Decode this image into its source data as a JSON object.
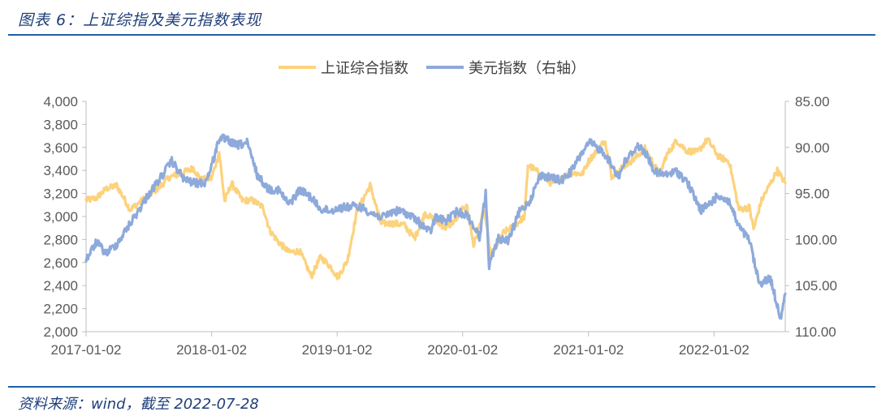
{
  "header": {
    "title": "图表 6：上证综指及美元指数表现"
  },
  "footer": {
    "source": "资料来源：wind，截至 2022-07-28"
  },
  "chart_data": {
    "type": "line",
    "title": "",
    "legend": {
      "placement": "top-center",
      "entries": [
        "上证综合指数",
        "美元指数（右轴）"
      ]
    },
    "x_axis": {
      "ticks": [
        "2017-01-02",
        "2018-01-02",
        "2019-01-02",
        "2020-01-02",
        "2021-01-02",
        "2022-01-02"
      ],
      "range": [
        "2017-01-02",
        "2022-07-28"
      ]
    },
    "y_left": {
      "min": 2000,
      "max": 4000,
      "step": 200,
      "ticks": [
        "2,000",
        "2,200",
        "2,400",
        "2,600",
        "2,800",
        "3,000",
        "3,200",
        "3,400",
        "3,600",
        "3,800",
        "4,000"
      ]
    },
    "y_right": {
      "min": 85,
      "max": 110,
      "step": 5,
      "reversed": true,
      "ticks": [
        "85.00",
        "90.00",
        "95.00",
        "100.00",
        "105.00",
        "110.00"
      ]
    },
    "grid": false,
    "series": [
      {
        "name": "上证综合指数",
        "axis": "left",
        "color": "#FCD27D",
        "points": [
          [
            "2017-01-02",
            3140
          ],
          [
            "2017-02-01",
            3160
          ],
          [
            "2017-03-01",
            3240
          ],
          [
            "2017-04-01",
            3270
          ],
          [
            "2017-04-20",
            3170
          ],
          [
            "2017-05-10",
            3060
          ],
          [
            "2017-06-01",
            3110
          ],
          [
            "2017-07-01",
            3180
          ],
          [
            "2017-08-01",
            3250
          ],
          [
            "2017-09-01",
            3340
          ],
          [
            "2017-10-01",
            3370
          ],
          [
            "2017-11-10",
            3420
          ],
          [
            "2017-12-01",
            3320
          ],
          [
            "2018-01-02",
            3330
          ],
          [
            "2018-01-24",
            3560
          ],
          [
            "2018-02-09",
            3130
          ],
          [
            "2018-03-01",
            3290
          ],
          [
            "2018-04-01",
            3140
          ],
          [
            "2018-05-01",
            3140
          ],
          [
            "2018-06-01",
            3080
          ],
          [
            "2018-06-20",
            2880
          ],
          [
            "2018-07-15",
            2780
          ],
          [
            "2018-08-15",
            2690
          ],
          [
            "2018-09-15",
            2700
          ],
          [
            "2018-10-19",
            2480
          ],
          [
            "2018-11-15",
            2650
          ],
          [
            "2018-12-15",
            2560
          ],
          [
            "2019-01-04",
            2470
          ],
          [
            "2019-02-01",
            2620
          ],
          [
            "2019-03-01",
            3050
          ],
          [
            "2019-04-08",
            3270
          ],
          [
            "2019-05-10",
            2940
          ],
          [
            "2019-06-15",
            2940
          ],
          [
            "2019-07-15",
            2930
          ],
          [
            "2019-08-15",
            2810
          ],
          [
            "2019-09-15",
            3030
          ],
          [
            "2019-10-15",
            2960
          ],
          [
            "2019-11-15",
            2900
          ],
          [
            "2019-12-15",
            2980
          ],
          [
            "2020-01-13",
            3110
          ],
          [
            "2020-02-03",
            2750
          ],
          [
            "2020-03-05",
            3060
          ],
          [
            "2020-03-23",
            2660
          ],
          [
            "2020-04-30",
            2860
          ],
          [
            "2020-06-01",
            2920
          ],
          [
            "2020-06-30",
            3000
          ],
          [
            "2020-07-10",
            3450
          ],
          [
            "2020-08-15",
            3370
          ],
          [
            "2020-09-15",
            3290
          ],
          [
            "2020-10-15",
            3330
          ],
          [
            "2020-11-15",
            3380
          ],
          [
            "2020-12-15",
            3370
          ],
          [
            "2021-01-02",
            3480
          ],
          [
            "2021-02-18",
            3660
          ],
          [
            "2021-03-10",
            3350
          ],
          [
            "2021-04-15",
            3440
          ],
          [
            "2021-05-15",
            3500
          ],
          [
            "2021-06-15",
            3590
          ],
          [
            "2021-07-28",
            3360
          ],
          [
            "2021-08-15",
            3520
          ],
          [
            "2021-09-15",
            3660
          ],
          [
            "2021-10-15",
            3570
          ],
          [
            "2021-11-15",
            3560
          ],
          [
            "2021-12-14",
            3670
          ],
          [
            "2022-01-15",
            3520
          ],
          [
            "2022-02-15",
            3480
          ],
          [
            "2022-03-15",
            3060
          ],
          [
            "2022-04-15",
            3080
          ],
          [
            "2022-04-27",
            2890
          ],
          [
            "2022-05-20",
            3140
          ],
          [
            "2022-07-05",
            3400
          ],
          [
            "2022-07-28",
            3290
          ]
        ]
      },
      {
        "name": "美元指数（右轴）",
        "axis": "right",
        "color": "#8EAADB",
        "points": [
          [
            "2017-01-02",
            102.2
          ],
          [
            "2017-02-01",
            100.3
          ],
          [
            "2017-03-01",
            101.5
          ],
          [
            "2017-04-01",
            100.5
          ],
          [
            "2017-05-01",
            98.8
          ],
          [
            "2017-06-01",
            97.0
          ],
          [
            "2017-07-01",
            95.2
          ],
          [
            "2017-08-01",
            93.6
          ],
          [
            "2017-09-08",
            91.5
          ],
          [
            "2017-10-15",
            93.5
          ],
          [
            "2017-11-15",
            93.9
          ],
          [
            "2017-12-15",
            93.8
          ],
          [
            "2018-01-02",
            92.0
          ],
          [
            "2018-01-25",
            88.9
          ],
          [
            "2018-02-15",
            89.2
          ],
          [
            "2018-03-15",
            89.8
          ],
          [
            "2018-04-15",
            89.5
          ],
          [
            "2018-05-15",
            93.0
          ],
          [
            "2018-06-15",
            94.5
          ],
          [
            "2018-07-15",
            94.6
          ],
          [
            "2018-08-15",
            96.2
          ],
          [
            "2018-09-15",
            94.6
          ],
          [
            "2018-10-15",
            95.3
          ],
          [
            "2018-11-15",
            96.7
          ],
          [
            "2018-12-15",
            96.9
          ],
          [
            "2019-01-02",
            96.6
          ],
          [
            "2019-02-15",
            96.4
          ],
          [
            "2019-03-15",
            96.5
          ],
          [
            "2019-04-15",
            97.2
          ],
          [
            "2019-05-15",
            97.6
          ],
          [
            "2019-06-15",
            96.9
          ],
          [
            "2019-07-15",
            97.0
          ],
          [
            "2019-08-15",
            97.7
          ],
          [
            "2019-09-30",
            99.2
          ],
          [
            "2019-10-15",
            97.6
          ],
          [
            "2019-11-15",
            98.0
          ],
          [
            "2019-12-15",
            97.0
          ],
          [
            "2020-01-15",
            97.3
          ],
          [
            "2020-02-20",
            99.7
          ],
          [
            "2020-03-09",
            95.0
          ],
          [
            "2020-03-19",
            102.8
          ],
          [
            "2020-04-15",
            99.9
          ],
          [
            "2020-05-15",
            100.1
          ],
          [
            "2020-06-15",
            97.0
          ],
          [
            "2020-07-15",
            95.8
          ],
          [
            "2020-08-15",
            93.0
          ],
          [
            "2020-09-15",
            93.3
          ],
          [
            "2020-10-15",
            93.6
          ],
          [
            "2020-11-15",
            92.5
          ],
          [
            "2020-12-15",
            90.5
          ],
          [
            "2021-01-06",
            89.5
          ],
          [
            "2021-02-15",
            90.5
          ],
          [
            "2021-03-31",
            93.2
          ],
          [
            "2021-04-15",
            91.7
          ],
          [
            "2021-05-25",
            89.8
          ],
          [
            "2021-06-15",
            90.5
          ],
          [
            "2021-07-15",
            92.7
          ],
          [
            "2021-08-15",
            93.0
          ],
          [
            "2021-09-15",
            92.6
          ],
          [
            "2021-10-15",
            93.7
          ],
          [
            "2021-11-24",
            96.8
          ],
          [
            "2021-12-15",
            96.3
          ],
          [
            "2022-01-15",
            95.2
          ],
          [
            "2022-02-15",
            95.9
          ],
          [
            "2022-03-15",
            98.6
          ],
          [
            "2022-04-15",
            100.1
          ],
          [
            "2022-05-13",
            104.8
          ],
          [
            "2022-06-15",
            104.2
          ],
          [
            "2022-07-14",
            108.5
          ],
          [
            "2022-07-28",
            105.9
          ]
        ]
      }
    ]
  }
}
